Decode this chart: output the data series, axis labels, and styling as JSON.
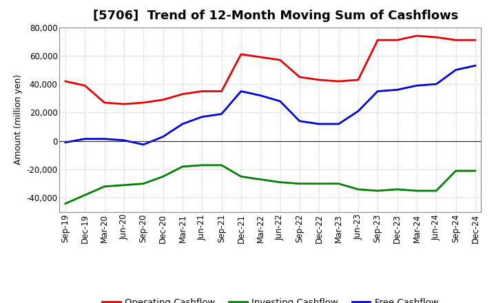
{
  "title": "[5706]  Trend of 12-Month Moving Sum of Cashflows",
  "ylabel": "Amount (million yen)",
  "x_labels": [
    "Sep-19",
    "Dec-19",
    "Mar-20",
    "Jun-20",
    "Sep-20",
    "Dec-20",
    "Mar-21",
    "Jun-21",
    "Sep-21",
    "Dec-21",
    "Mar-22",
    "Jun-22",
    "Sep-22",
    "Dec-22",
    "Mar-23",
    "Jun-23",
    "Sep-23",
    "Dec-23",
    "Mar-24",
    "Jun-24",
    "Sep-24",
    "Dec-24"
  ],
  "operating": [
    42000,
    39000,
    27000,
    26000,
    27000,
    29000,
    33000,
    35000,
    35000,
    61000,
    59000,
    57000,
    45000,
    43000,
    42000,
    43000,
    71000,
    71000,
    74000,
    73000,
    71000,
    71000
  ],
  "investing": [
    -44000,
    -38000,
    -32000,
    -31000,
    -30000,
    -25000,
    -18000,
    -17000,
    -17000,
    -25000,
    -27000,
    -29000,
    -30000,
    -30000,
    -30000,
    -34000,
    -35000,
    -34000,
    -35000,
    -35000,
    -21000,
    -21000
  ],
  "free": [
    -1000,
    1500,
    1500,
    500,
    -2500,
    3000,
    12000,
    17000,
    19000,
    35000,
    32000,
    28000,
    14000,
    12000,
    12000,
    21000,
    35000,
    36000,
    39000,
    40000,
    50000,
    53000
  ],
  "operating_color": "#e80000",
  "investing_color": "#008000",
  "free_color": "#0000dd",
  "ylim": [
    -50000,
    80000
  ],
  "yticks": [
    -40000,
    -20000,
    0,
    20000,
    40000,
    60000,
    80000
  ],
  "background_color": "#ffffff",
  "plot_bg_color": "#ffffff",
  "grid_color": "#bbbbbb",
  "title_fontsize": 13,
  "axis_fontsize": 8.5,
  "ylabel_fontsize": 9,
  "legend_fontsize": 9.5,
  "linewidth": 2.0
}
